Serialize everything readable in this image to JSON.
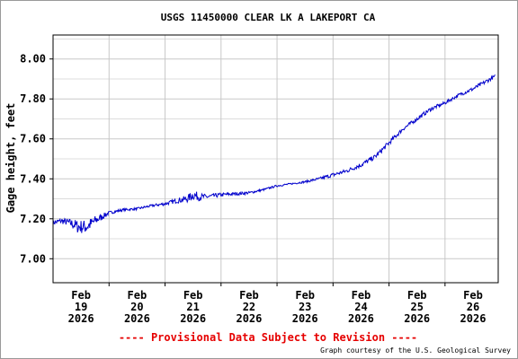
{
  "chart_data": {
    "type": "line",
    "title": "USGS 11450000 CLEAR LK A LAKEPORT CA",
    "xlabel": "",
    "ylabel": "Gage height, feet",
    "ylim": [
      6.88,
      8.12
    ],
    "xlim": [
      0,
      7.95
    ],
    "y_ticks": [
      {
        "value": 7.0,
        "label": "7.00"
      },
      {
        "value": 7.2,
        "label": "7.20"
      },
      {
        "value": 7.4,
        "label": "7.40"
      },
      {
        "value": 7.6,
        "label": "7.60"
      },
      {
        "value": 7.8,
        "label": "7.80"
      },
      {
        "value": 8.0,
        "label": "8.00"
      }
    ],
    "x_ticks": [
      {
        "value": 0.5,
        "month": "Feb",
        "day": "19",
        "year": "2026"
      },
      {
        "value": 1.5,
        "month": "Feb",
        "day": "20",
        "year": "2026"
      },
      {
        "value": 2.5,
        "month": "Feb",
        "day": "21",
        "year": "2026"
      },
      {
        "value": 3.5,
        "month": "Feb",
        "day": "22",
        "year": "2026"
      },
      {
        "value": 4.5,
        "month": "Feb",
        "day": "23",
        "year": "2026"
      },
      {
        "value": 5.5,
        "month": "Feb",
        "day": "24",
        "year": "2026"
      },
      {
        "value": 6.5,
        "month": "Feb",
        "day": "25",
        "year": "2026"
      },
      {
        "value": 7.5,
        "month": "Feb",
        "day": "26",
        "year": "2026"
      }
    ],
    "grid": true,
    "series_color": "#0000cc",
    "series": [
      {
        "x": [
          0,
          0.15,
          0.3,
          0.45,
          0.6,
          0.75,
          1.0,
          1.25,
          1.5,
          1.75,
          2.0,
          2.2,
          2.4,
          2.5,
          2.6,
          2.75,
          3.0,
          3.25,
          3.5,
          3.75,
          4.0,
          4.25,
          4.5,
          4.75,
          5.0,
          5.25,
          5.5,
          5.75,
          6.0,
          6.25,
          6.5,
          6.75,
          7.0,
          7.25,
          7.5,
          7.75,
          7.9
        ],
        "y": [
          7.18,
          7.19,
          7.18,
          7.16,
          7.16,
          7.19,
          7.23,
          7.245,
          7.25,
          7.265,
          7.275,
          7.29,
          7.3,
          7.32,
          7.31,
          7.31,
          7.32,
          7.325,
          7.33,
          7.345,
          7.365,
          7.375,
          7.385,
          7.4,
          7.42,
          7.44,
          7.47,
          7.51,
          7.58,
          7.65,
          7.7,
          7.75,
          7.78,
          7.82,
          7.85,
          7.89,
          7.915
        ],
        "noise": [
          0.012,
          0.015,
          0.02,
          0.035,
          0.035,
          0.025,
          0.008,
          0.006,
          0.006,
          0.006,
          0.008,
          0.012,
          0.018,
          0.025,
          0.02,
          0.012,
          0.01,
          0.008,
          0.007,
          0.005,
          0.005,
          0.004,
          0.005,
          0.007,
          0.01,
          0.01,
          0.012,
          0.012,
          0.012,
          0.01,
          0.01,
          0.01,
          0.008,
          0.008,
          0.01,
          0.01,
          0.008
        ]
      }
    ]
  },
  "footer": {
    "provisional": "---- Provisional Data Subject to Revision ----",
    "credit": "Graph courtesy of the U.S. Geological Survey"
  }
}
